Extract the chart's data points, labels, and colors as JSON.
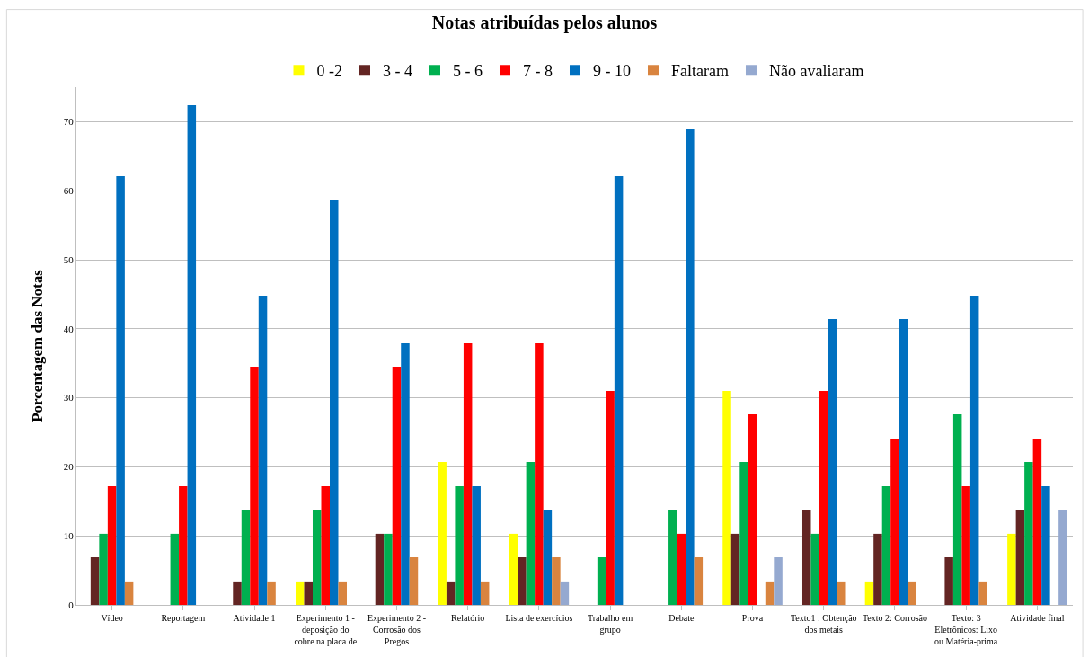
{
  "chart_data": {
    "type": "bar",
    "title": "Notas atribuídas pelos alunos",
    "ylabel": "Porcentagem das Notas",
    "categories": [
      "Vídeo",
      "Reportagem",
      "Atividade 1",
      "Experimento 1 -\ndeposição do\ncobre na placa de",
      "Experimento 2 -\nCorrosão dos\nPregos",
      "Relatório",
      "Lista de exercícios",
      "Trabalho em\ngrupo",
      "Debate",
      "Prova",
      "Texto1 : Obtenção\ndos metais",
      "Texto 2: Corrosão",
      "Texto: 3\nEletrônicos: Lixo\nou Matéria-prima",
      "Atividade final"
    ],
    "series": [
      {
        "name": "0 -2",
        "color": "#ffff00",
        "values": [
          null,
          null,
          null,
          3.4,
          null,
          20.7,
          10.3,
          null,
          null,
          31,
          null,
          3.4,
          null,
          10.3
        ]
      },
      {
        "name": "3 - 4",
        "color": "#632523",
        "values": [
          6.9,
          null,
          3.4,
          3.4,
          10.3,
          3.4,
          6.9,
          null,
          null,
          10.3,
          13.8,
          10.3,
          6.9,
          13.8
        ]
      },
      {
        "name": "5 - 6",
        "color": "#00b050",
        "values": [
          10.3,
          10.3,
          13.8,
          13.8,
          10.3,
          17.2,
          20.7,
          6.9,
          13.8,
          20.7,
          10.3,
          17.2,
          27.6,
          20.7
        ]
      },
      {
        "name": "7 - 8",
        "color": "#ff0000",
        "values": [
          17.2,
          17.2,
          34.5,
          17.2,
          34.5,
          37.9,
          37.9,
          31,
          10.3,
          27.6,
          31,
          24.1,
          17.2,
          24.1
        ]
      },
      {
        "name": "9 - 10",
        "color": "#0070c0",
        "values": [
          62.1,
          72.4,
          44.8,
          58.6,
          37.9,
          17.2,
          13.8,
          62.1,
          69,
          null,
          41.4,
          41.4,
          44.8,
          17.2
        ]
      },
      {
        "name": "Faltaram",
        "color": "#d9843f",
        "values": [
          3.4,
          null,
          3.4,
          3.4,
          6.9,
          3.4,
          6.9,
          null,
          6.9,
          3.4,
          3.4,
          3.4,
          3.4,
          null
        ]
      },
      {
        "name": "Não avaliaram",
        "color": "#95a9d0",
        "values": [
          null,
          null,
          null,
          null,
          null,
          null,
          3.4,
          null,
          null,
          6.9,
          null,
          null,
          null,
          13.8
        ]
      }
    ],
    "ylim": [
      0,
      75
    ],
    "yticks": [
      0,
      10,
      20,
      30,
      40,
      50,
      60,
      70
    ],
    "grid": "y",
    "legend": "top"
  }
}
